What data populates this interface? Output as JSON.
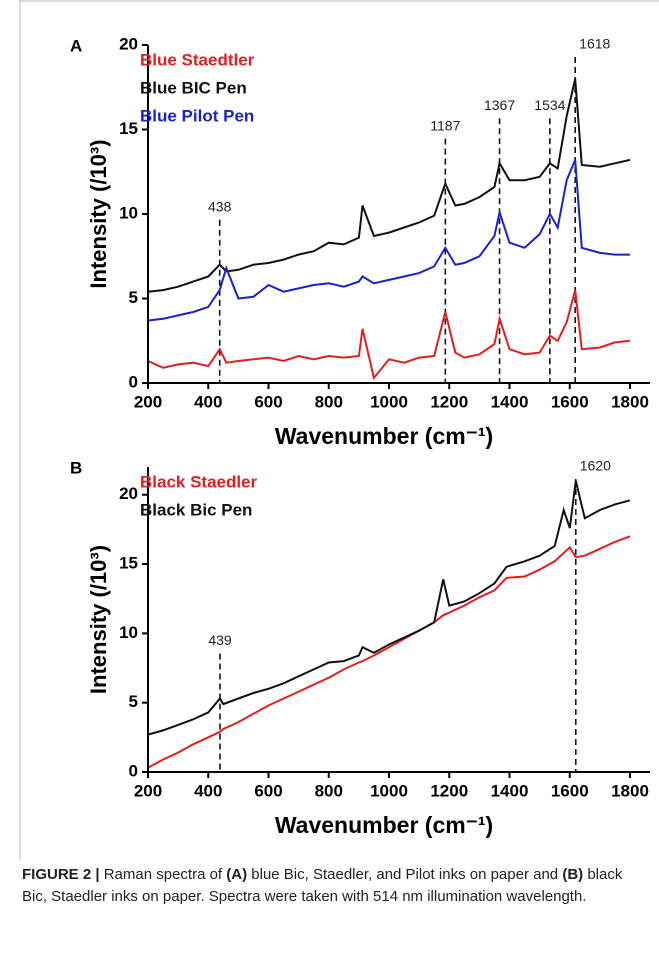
{
  "chart_data": [
    {
      "type": "line",
      "panel": "A",
      "y_label": "Intensity (/10³)",
      "x_label": "Wavenumber (cm⁻¹)",
      "xlim": [
        200,
        1800
      ],
      "xticks": [
        200,
        400,
        600,
        800,
        1000,
        1200,
        1400,
        1600,
        1800
      ],
      "ylim": [
        0,
        20
      ],
      "yticks": [
        0,
        5,
        10,
        15,
        20
      ],
      "legend": "upper left",
      "peaks": [
        438,
        1187,
        1367,
        1534,
        1618
      ],
      "x": [
        200,
        250,
        300,
        350,
        400,
        438,
        460,
        500,
        550,
        600,
        650,
        700,
        750,
        800,
        850,
        900,
        912,
        950,
        1000,
        1050,
        1100,
        1150,
        1187,
        1220,
        1250,
        1300,
        1350,
        1367,
        1400,
        1450,
        1500,
        1534,
        1560,
        1590,
        1618,
        1640,
        1700,
        1750,
        1800
      ],
      "series": [
        {
          "name": "Blue Staedtler",
          "color": "#e02020",
          "values": [
            1.3,
            0.9,
            1.1,
            1.2,
            1.0,
            2.0,
            1.2,
            1.3,
            1.4,
            1.5,
            1.3,
            1.6,
            1.4,
            1.6,
            1.5,
            1.6,
            3.2,
            0.3,
            1.4,
            1.2,
            1.5,
            1.6,
            4.2,
            1.8,
            1.5,
            1.7,
            2.3,
            3.8,
            2.0,
            1.7,
            1.8,
            2.8,
            2.5,
            3.6,
            5.5,
            2.0,
            2.1,
            2.4,
            2.5
          ]
        },
        {
          "name": "Blue BIC Pen",
          "color": "#111111",
          "values": [
            5.4,
            5.5,
            5.7,
            6.0,
            6.3,
            7.0,
            6.6,
            6.7,
            7.0,
            7.1,
            7.3,
            7.6,
            7.8,
            8.3,
            8.2,
            8.6,
            10.5,
            8.7,
            8.9,
            9.2,
            9.5,
            9.9,
            11.8,
            10.5,
            10.6,
            11.0,
            11.6,
            13.0,
            12.0,
            12.0,
            12.2,
            13.0,
            12.7,
            15.8,
            18.0,
            12.9,
            12.8,
            13.0,
            13.2
          ]
        },
        {
          "name": "Blue Pilot Pen",
          "color": "#1a22c8",
          "values": [
            3.7,
            3.8,
            4.0,
            4.2,
            4.5,
            5.5,
            6.8,
            5.0,
            5.1,
            5.8,
            5.4,
            5.6,
            5.8,
            5.9,
            5.7,
            6.0,
            6.3,
            5.9,
            6.1,
            6.3,
            6.5,
            6.9,
            8.0,
            7.0,
            7.1,
            7.5,
            8.7,
            10.1,
            8.3,
            8.0,
            8.8,
            10.0,
            9.2,
            12.0,
            13.2,
            8.0,
            7.7,
            7.6,
            7.6
          ]
        }
      ]
    },
    {
      "type": "line",
      "panel": "B",
      "y_label": "Intensity (/10³)",
      "x_label": "Wavenumber (cm⁻¹)",
      "xlim": [
        200,
        1800
      ],
      "xticks": [
        200,
        400,
        600,
        800,
        1000,
        1200,
        1400,
        1600,
        1800
      ],
      "ylim": [
        0,
        22
      ],
      "yticks": [
        0,
        5,
        10,
        15,
        20
      ],
      "legend": "upper left",
      "peaks": [
        439,
        1620
      ],
      "x": [
        200,
        250,
        300,
        350,
        400,
        439,
        450,
        500,
        550,
        600,
        650,
        700,
        750,
        800,
        850,
        900,
        912,
        950,
        1000,
        1050,
        1100,
        1150,
        1180,
        1200,
        1250,
        1300,
        1350,
        1390,
        1450,
        1500,
        1550,
        1580,
        1600,
        1620,
        1650,
        1700,
        1750,
        1800
      ],
      "series": [
        {
          "name": "Black Staedler",
          "color": "#e02020",
          "values": [
            0.3,
            0.9,
            1.4,
            2.0,
            2.5,
            2.9,
            3.1,
            3.6,
            4.2,
            4.8,
            5.3,
            5.8,
            6.3,
            6.8,
            7.4,
            7.9,
            8.0,
            8.4,
            9.0,
            9.6,
            10.2,
            10.8,
            11.3,
            11.5,
            12.0,
            12.6,
            13.1,
            14.0,
            14.1,
            14.6,
            15.2,
            15.8,
            16.2,
            15.5,
            15.6,
            16.1,
            16.6,
            17.0
          ]
        },
        {
          "name": "Black Bic Pen",
          "color": "#111111",
          "values": [
            2.7,
            3.0,
            3.4,
            3.8,
            4.3,
            5.3,
            4.9,
            5.3,
            5.7,
            6.0,
            6.4,
            6.9,
            7.4,
            7.9,
            8.0,
            8.4,
            9.0,
            8.6,
            9.2,
            9.7,
            10.2,
            10.8,
            13.9,
            12.0,
            12.3,
            12.9,
            13.6,
            14.8,
            15.2,
            15.6,
            16.3,
            18.9,
            17.6,
            21.0,
            18.3,
            18.9,
            19.3,
            19.6
          ]
        }
      ]
    }
  ],
  "caption": {
    "label": "FIGURE 2 |",
    "parts": [
      " Raman spectra of ",
      "(A)",
      " blue Bic, Staedler, and Pilot inks on paper and ",
      "(B)",
      " black Bic, Staedler inks on paper. Spectra were taken with 514 nm illumination wavelength."
    ]
  }
}
